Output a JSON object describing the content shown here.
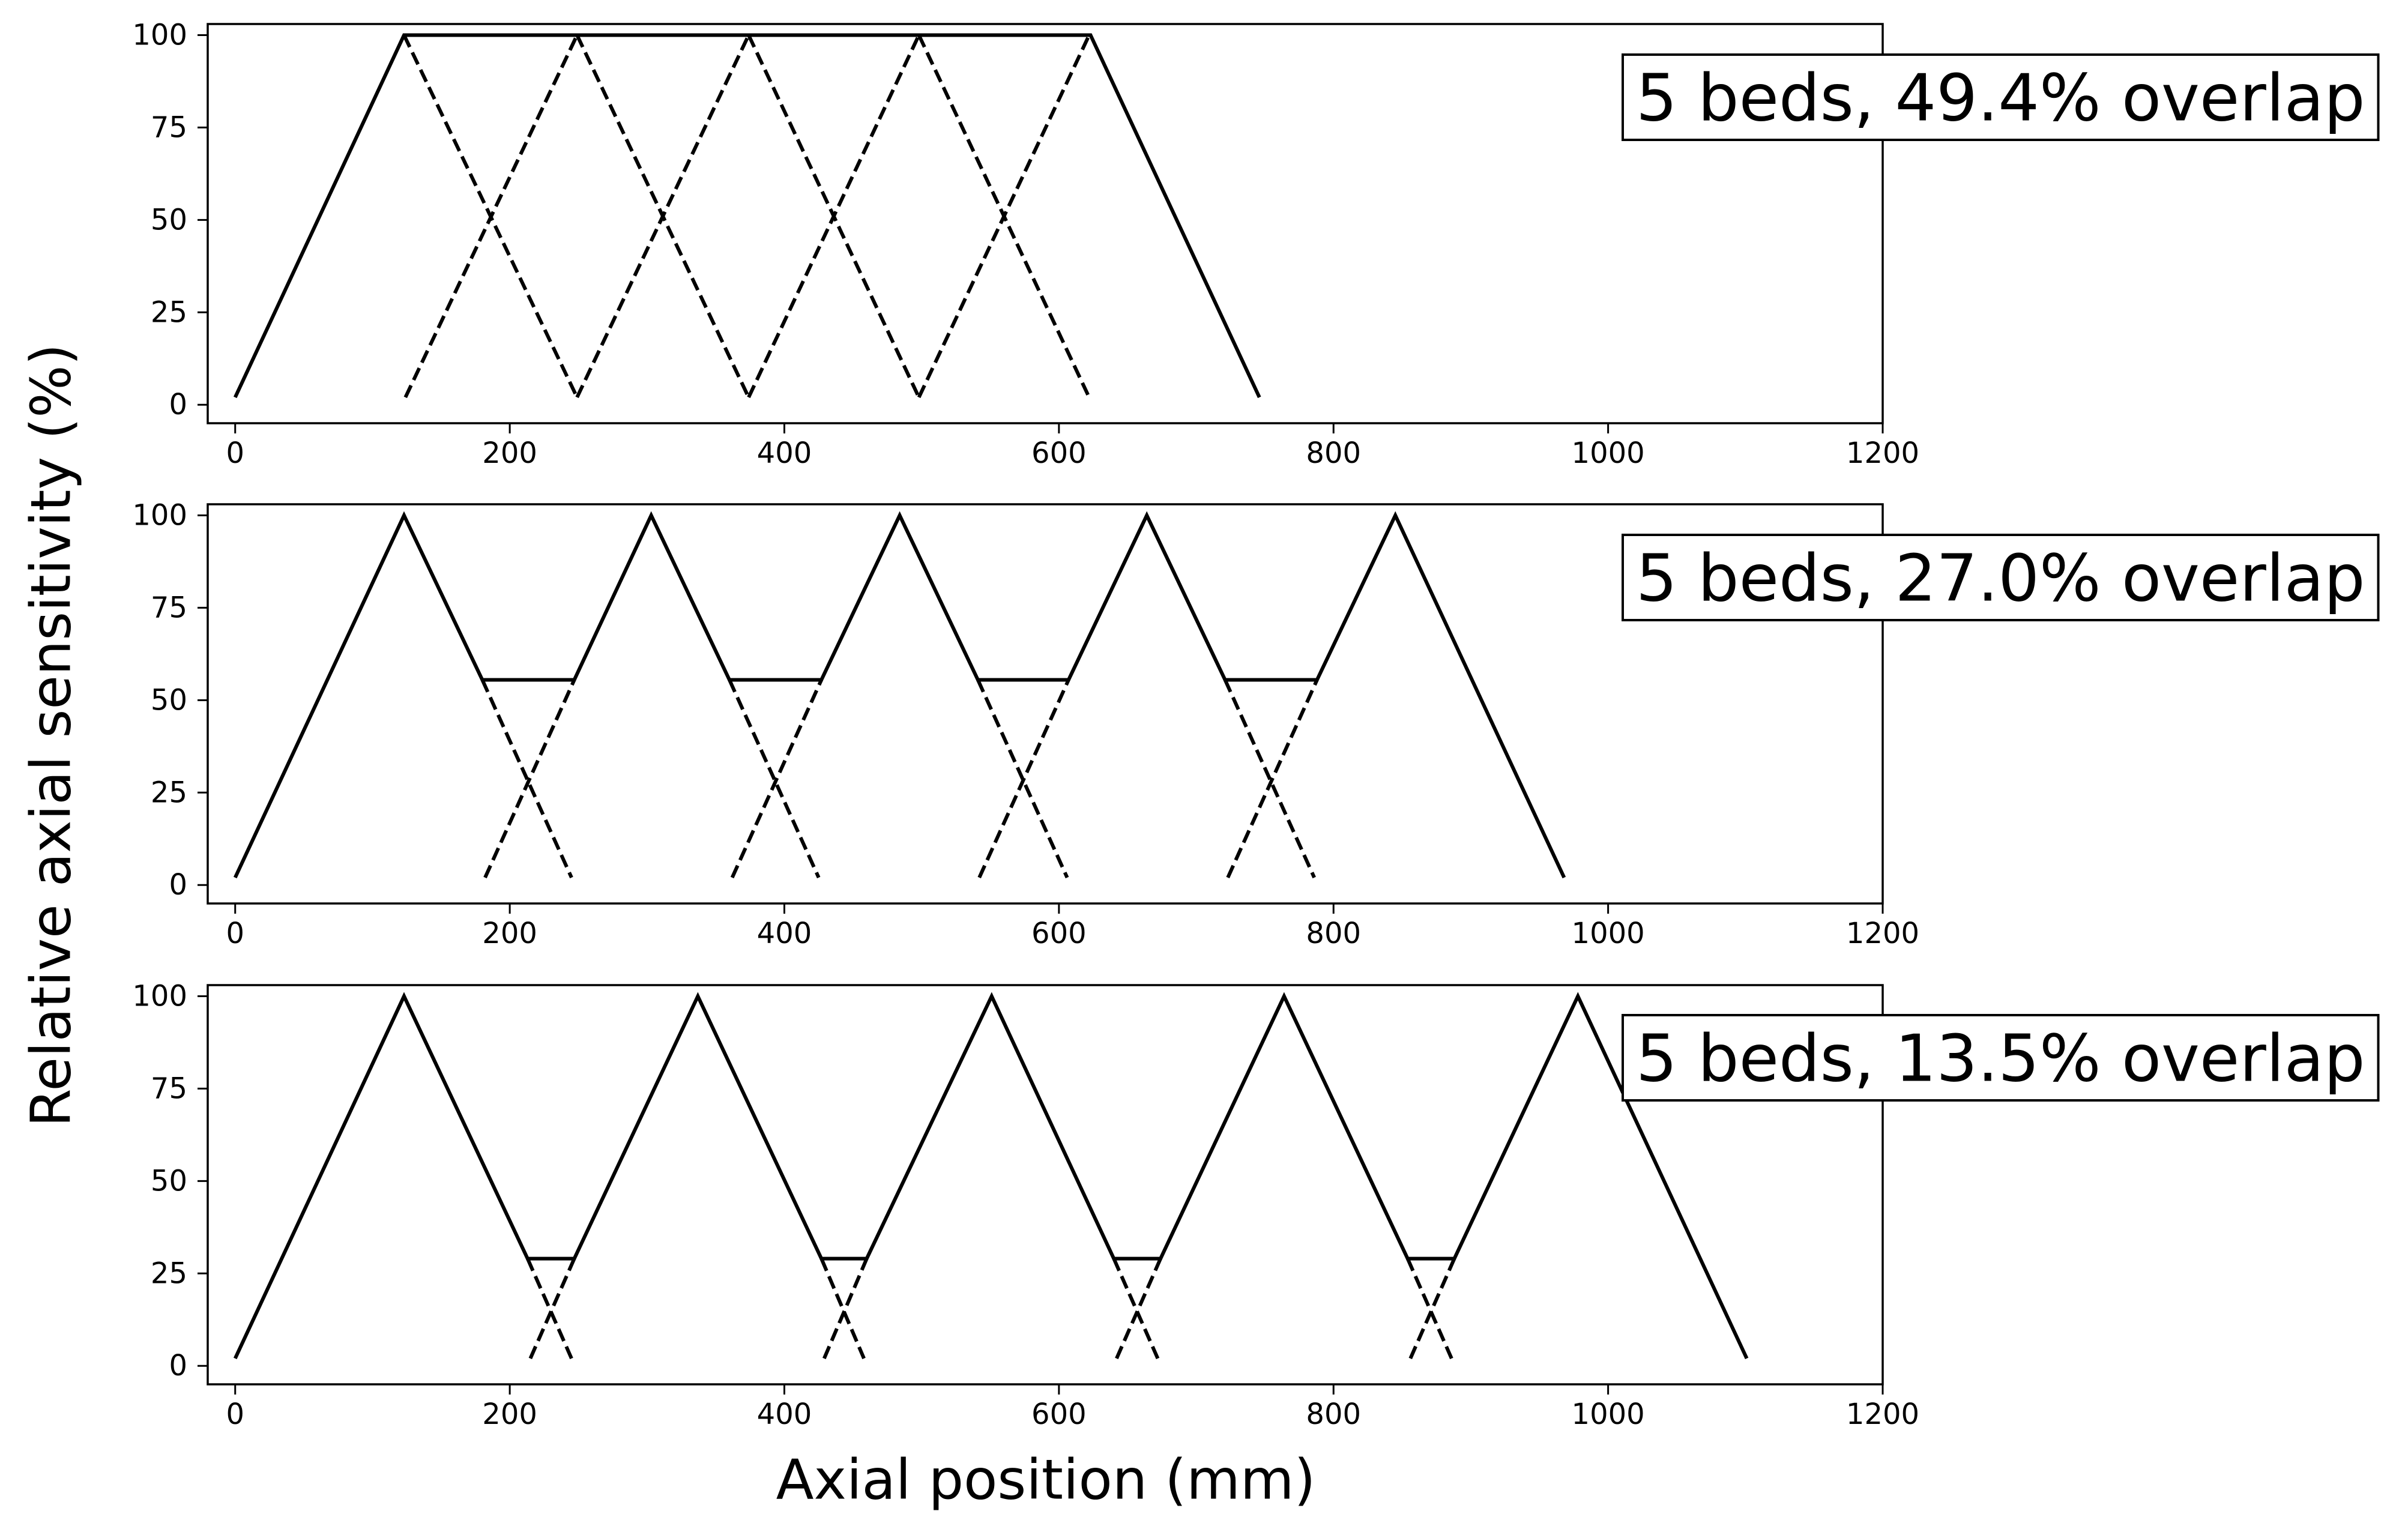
{
  "figure": {
    "ylabel": "Relative axial sensitivity (%)",
    "xlabel": "Axial position (mm)"
  },
  "chart_data": [
    {
      "type": "line",
      "annotation": "5 beds, 49.4% overlap",
      "xlim": [
        -20,
        1200
      ],
      "ylim": [
        -5,
        103
      ],
      "xticks": [
        0,
        200,
        400,
        600,
        800,
        1000,
        1200
      ],
      "yticks": [
        0,
        25,
        50,
        75,
        100
      ],
      "grid": false,
      "series": [
        {
          "style": "solid",
          "x": [
            0,
            123,
            623,
            746
          ],
          "y": [
            2,
            100,
            100,
            2
          ]
        },
        {
          "style": "dashed",
          "x": [
            123,
            249
          ],
          "y": [
            100,
            2
          ]
        },
        {
          "style": "dashed",
          "x": [
            124,
            249
          ],
          "y": [
            2,
            100
          ]
        },
        {
          "style": "dashed",
          "x": [
            249,
            374
          ],
          "y": [
            100,
            2
          ]
        },
        {
          "style": "dashed",
          "x": [
            249,
            374
          ],
          "y": [
            2,
            100
          ]
        },
        {
          "style": "dashed",
          "x": [
            374,
            498
          ],
          "y": [
            100,
            2
          ]
        },
        {
          "style": "dashed",
          "x": [
            374,
            498
          ],
          "y": [
            2,
            100
          ]
        },
        {
          "style": "dashed",
          "x": [
            498,
            622
          ],
          "y": [
            100,
            2
          ]
        },
        {
          "style": "dashed",
          "x": [
            498,
            622
          ],
          "y": [
            2,
            100
          ]
        }
      ]
    },
    {
      "type": "line",
      "annotation": "5 beds, 27.0% overlap",
      "xlim": [
        -20,
        1200
      ],
      "ylim": [
        -5,
        103
      ],
      "xticks": [
        0,
        200,
        400,
        600,
        800,
        1000,
        1200
      ],
      "yticks": [
        0,
        25,
        50,
        75,
        100
      ],
      "grid": false,
      "series": [
        {
          "style": "solid",
          "x": [
            0,
            123,
            180,
            247,
            303,
            360,
            427,
            484,
            541,
            607,
            664,
            721,
            788,
            845,
            968
          ],
          "y": [
            2,
            100,
            55.5,
            55.5,
            100,
            55.5,
            55.5,
            100,
            55.5,
            55.5,
            100,
            55.5,
            55.5,
            100,
            2
          ]
        },
        {
          "style": "dashed",
          "x": [
            180,
            245
          ],
          "y": [
            55.5,
            2
          ]
        },
        {
          "style": "dashed",
          "x": [
            182,
            247
          ],
          "y": [
            2,
            55.5
          ]
        },
        {
          "style": "dashed",
          "x": [
            360,
            425
          ],
          "y": [
            55.5,
            2
          ]
        },
        {
          "style": "dashed",
          "x": [
            362,
            427
          ],
          "y": [
            2,
            55.5
          ]
        },
        {
          "style": "dashed",
          "x": [
            541,
            606
          ],
          "y": [
            55.5,
            2
          ]
        },
        {
          "style": "dashed",
          "x": [
            542,
            607
          ],
          "y": [
            2,
            55.5
          ]
        },
        {
          "style": "dashed",
          "x": [
            721,
            786
          ],
          "y": [
            55.5,
            2
          ]
        },
        {
          "style": "dashed",
          "x": [
            723,
            788
          ],
          "y": [
            2,
            55.5
          ]
        }
      ]
    },
    {
      "type": "line",
      "annotation": "5 beds, 13.5% overlap",
      "xlim": [
        -20,
        1200
      ],
      "ylim": [
        -5,
        103
      ],
      "xticks": [
        0,
        200,
        400,
        600,
        800,
        1000,
        1200
      ],
      "yticks": [
        0,
        25,
        50,
        75,
        100
      ],
      "grid": false,
      "series": [
        {
          "style": "solid",
          "x": [
            0,
            123,
            213,
            247,
            337,
            427,
            460,
            551,
            640,
            674,
            764,
            854,
            888,
            978,
            1101
          ],
          "y": [
            2,
            100,
            29,
            29,
            100,
            29,
            29,
            100,
            29,
            29,
            100,
            29,
            29,
            100,
            2
          ]
        },
        {
          "style": "dashed",
          "x": [
            213,
            245
          ],
          "y": [
            29,
            2
          ]
        },
        {
          "style": "dashed",
          "x": [
            215,
            247
          ],
          "y": [
            2,
            29
          ]
        },
        {
          "style": "dashed",
          "x": [
            427,
            458
          ],
          "y": [
            29,
            2
          ]
        },
        {
          "style": "dashed",
          "x": [
            429,
            460
          ],
          "y": [
            2,
            29
          ]
        },
        {
          "style": "dashed",
          "x": [
            640,
            672
          ],
          "y": [
            29,
            2
          ]
        },
        {
          "style": "dashed",
          "x": [
            642,
            674
          ],
          "y": [
            2,
            29
          ]
        },
        {
          "style": "dashed",
          "x": [
            854,
            886
          ],
          "y": [
            29,
            2
          ]
        },
        {
          "style": "dashed",
          "x": [
            856,
            888
          ],
          "y": [
            2,
            29
          ]
        }
      ]
    }
  ]
}
